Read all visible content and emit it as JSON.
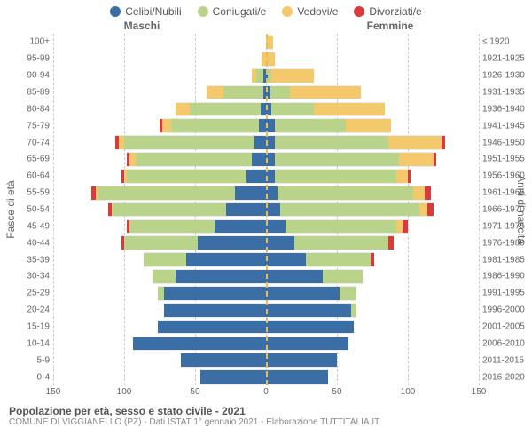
{
  "legend": [
    {
      "label": "Celibi/Nubili",
      "color": "#3a6ea5"
    },
    {
      "label": "Coniugati/e",
      "color": "#b9d48a"
    },
    {
      "label": "Vedovi/e",
      "color": "#f4c96b"
    },
    {
      "label": "Divorziati/e",
      "color": "#d93a3a"
    }
  ],
  "headers": {
    "male": "Maschi",
    "female": "Femmine"
  },
  "axis_left": "Fasce di età",
  "axis_right": "Anni di nascita",
  "caption": {
    "title": "Popolazione per età, sesso e stato civile - 2021",
    "sub": "COMUNE DI VIGGIANELLO (PZ) - Dati ISTAT 1° gennaio 2021 - Elaborazione TUTTITALIA.IT"
  },
  "xticks": [
    150,
    100,
    50,
    0,
    50,
    100,
    150
  ],
  "xmax": 150,
  "colors": {
    "single": "#3a6ea5",
    "married": "#b9d48a",
    "widowed": "#f4c96b",
    "divorced": "#d93a3a",
    "grid": "#cccccc",
    "centerline": "#e4be5a",
    "bg": "#ffffff"
  },
  "rows": [
    {
      "age": "100+",
      "year": "≤ 1920",
      "m": {
        "single": 0,
        "married": 0,
        "widowed": 0,
        "divorced": 0
      },
      "f": {
        "single": 0,
        "married": 0,
        "widowed": 5,
        "divorced": 0
      }
    },
    {
      "age": "95-99",
      "year": "1921-1925",
      "m": {
        "single": 0,
        "married": 0,
        "widowed": 3,
        "divorced": 0
      },
      "f": {
        "single": 0,
        "married": 0,
        "widowed": 6,
        "divorced": 0
      }
    },
    {
      "age": "90-94",
      "year": "1926-1930",
      "m": {
        "single": 2,
        "married": 5,
        "widowed": 3,
        "divorced": 0
      },
      "f": {
        "single": 1,
        "married": 3,
        "widowed": 30,
        "divorced": 0
      }
    },
    {
      "age": "85-89",
      "year": "1931-1935",
      "m": {
        "single": 2,
        "married": 28,
        "widowed": 12,
        "divorced": 0
      },
      "f": {
        "single": 3,
        "married": 14,
        "widowed": 50,
        "divorced": 0
      }
    },
    {
      "age": "80-84",
      "year": "1936-1940",
      "m": {
        "single": 4,
        "married": 50,
        "widowed": 10,
        "divorced": 0
      },
      "f": {
        "single": 4,
        "married": 30,
        "widowed": 50,
        "divorced": 0
      }
    },
    {
      "age": "75-79",
      "year": "1941-1945",
      "m": {
        "single": 5,
        "married": 62,
        "widowed": 6,
        "divorced": 2
      },
      "f": {
        "single": 6,
        "married": 50,
        "widowed": 32,
        "divorced": 0
      }
    },
    {
      "age": "70-74",
      "year": "1946-1950",
      "m": {
        "single": 8,
        "married": 92,
        "widowed": 4,
        "divorced": 2
      },
      "f": {
        "single": 6,
        "married": 80,
        "widowed": 38,
        "divorced": 2
      }
    },
    {
      "age": "65-69",
      "year": "1951-1955",
      "m": {
        "single": 10,
        "married": 82,
        "widowed": 4,
        "divorced": 2
      },
      "f": {
        "single": 6,
        "married": 88,
        "widowed": 24,
        "divorced": 2
      }
    },
    {
      "age": "60-64",
      "year": "1956-1960",
      "m": {
        "single": 14,
        "married": 84,
        "widowed": 2,
        "divorced": 2
      },
      "f": {
        "single": 6,
        "married": 86,
        "widowed": 8,
        "divorced": 2
      }
    },
    {
      "age": "55-59",
      "year": "1961-1965",
      "m": {
        "single": 22,
        "married": 96,
        "widowed": 2,
        "divorced": 3
      },
      "f": {
        "single": 8,
        "married": 96,
        "widowed": 8,
        "divorced": 4
      }
    },
    {
      "age": "50-54",
      "year": "1966-1970",
      "m": {
        "single": 28,
        "married": 80,
        "widowed": 1,
        "divorced": 2
      },
      "f": {
        "single": 10,
        "married": 98,
        "widowed": 6,
        "divorced": 4
      }
    },
    {
      "age": "45-49",
      "year": "1971-1975",
      "m": {
        "single": 36,
        "married": 60,
        "widowed": 0,
        "divorced": 2
      },
      "f": {
        "single": 14,
        "married": 78,
        "widowed": 4,
        "divorced": 4
      }
    },
    {
      "age": "40-44",
      "year": "1976-1980",
      "m": {
        "single": 48,
        "married": 52,
        "widowed": 0,
        "divorced": 2
      },
      "f": {
        "single": 20,
        "married": 66,
        "widowed": 0,
        "divorced": 4
      }
    },
    {
      "age": "35-39",
      "year": "1981-1985",
      "m": {
        "single": 56,
        "married": 30,
        "widowed": 0,
        "divorced": 0
      },
      "f": {
        "single": 28,
        "married": 46,
        "widowed": 0,
        "divorced": 2
      }
    },
    {
      "age": "30-34",
      "year": "1986-1990",
      "m": {
        "single": 64,
        "married": 16,
        "widowed": 0,
        "divorced": 0
      },
      "f": {
        "single": 40,
        "married": 28,
        "widowed": 0,
        "divorced": 0
      }
    },
    {
      "age": "25-29",
      "year": "1991-1995",
      "m": {
        "single": 72,
        "married": 4,
        "widowed": 0,
        "divorced": 0
      },
      "f": {
        "single": 52,
        "married": 12,
        "widowed": 0,
        "divorced": 0
      }
    },
    {
      "age": "20-24",
      "year": "1996-2000",
      "m": {
        "single": 72,
        "married": 0,
        "widowed": 0,
        "divorced": 0
      },
      "f": {
        "single": 60,
        "married": 4,
        "widowed": 0,
        "divorced": 0
      }
    },
    {
      "age": "15-19",
      "year": "2001-2005",
      "m": {
        "single": 76,
        "married": 0,
        "widowed": 0,
        "divorced": 0
      },
      "f": {
        "single": 62,
        "married": 0,
        "widowed": 0,
        "divorced": 0
      }
    },
    {
      "age": "10-14",
      "year": "2006-2010",
      "m": {
        "single": 94,
        "married": 0,
        "widowed": 0,
        "divorced": 0
      },
      "f": {
        "single": 58,
        "married": 0,
        "widowed": 0,
        "divorced": 0
      }
    },
    {
      "age": "5-9",
      "year": "2011-2015",
      "m": {
        "single": 60,
        "married": 0,
        "widowed": 0,
        "divorced": 0
      },
      "f": {
        "single": 50,
        "married": 0,
        "widowed": 0,
        "divorced": 0
      }
    },
    {
      "age": "0-4",
      "year": "2016-2020",
      "m": {
        "single": 46,
        "married": 0,
        "widowed": 0,
        "divorced": 0
      },
      "f": {
        "single": 44,
        "married": 0,
        "widowed": 0,
        "divorced": 0
      }
    }
  ]
}
